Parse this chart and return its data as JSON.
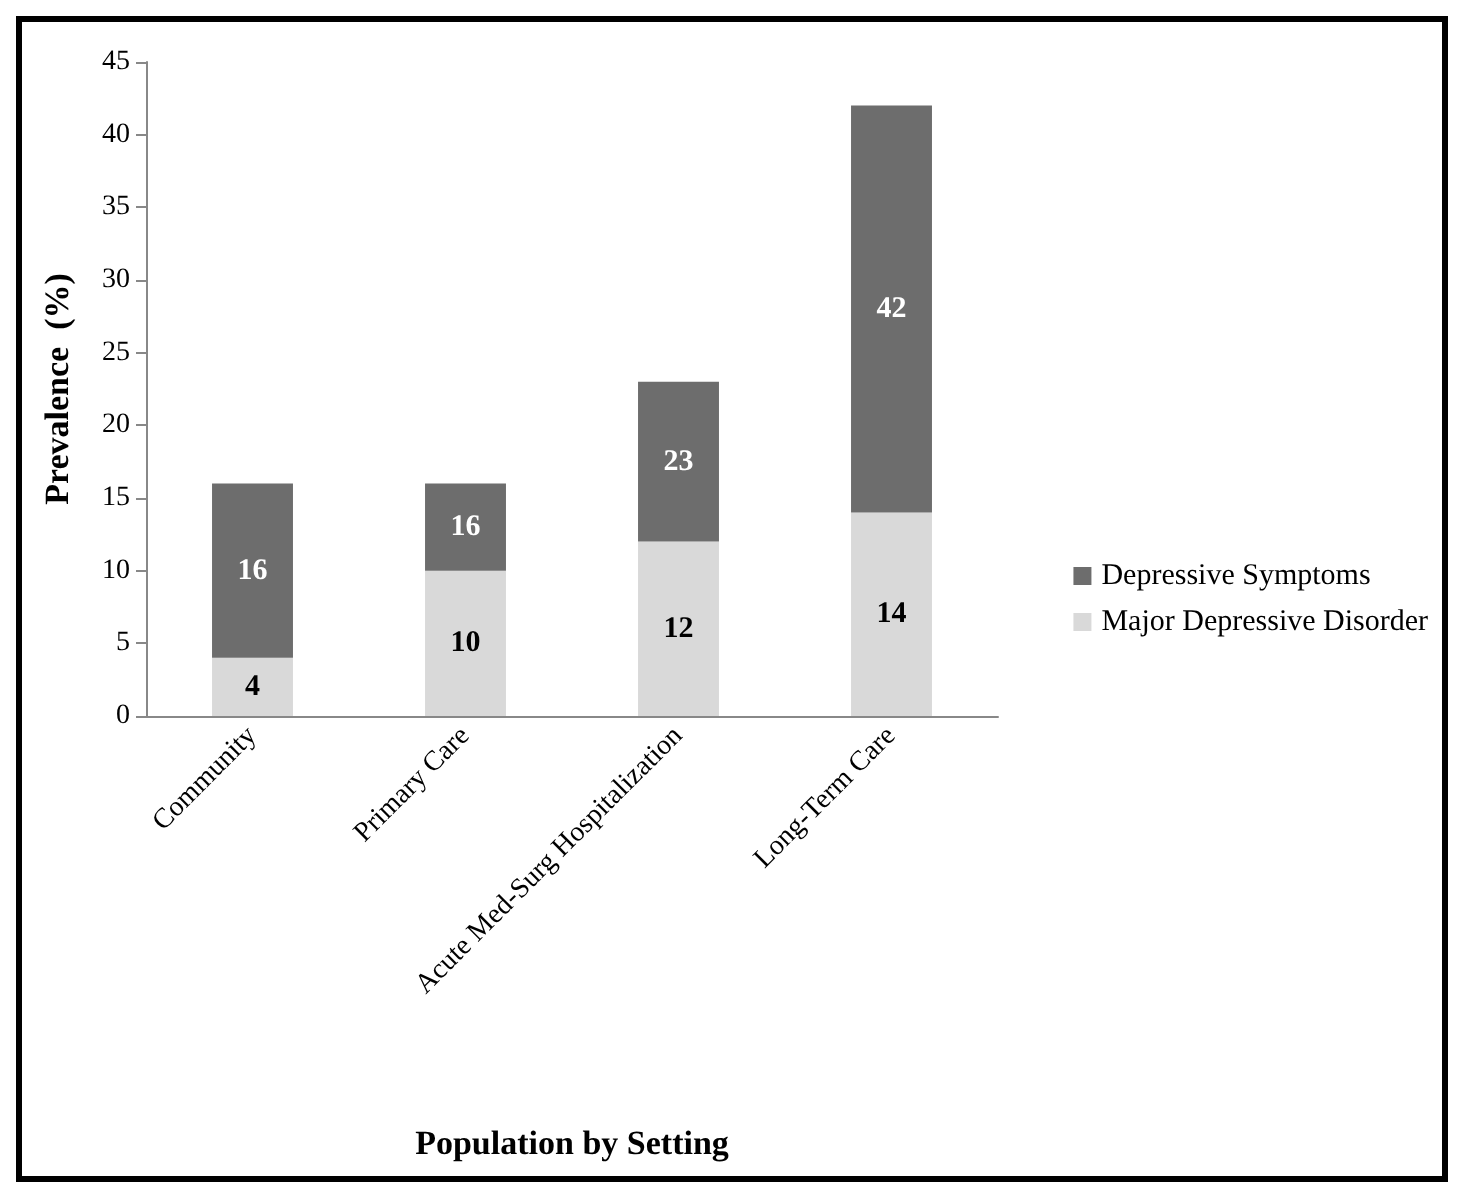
{
  "chart_data": {
    "type": "bar",
    "stacked": true,
    "xlabel": "Population by Setting",
    "ylabel": "Prevalence  (%)",
    "categories": [
      "Community",
      "Primary Care",
      "Acute Med-Surg Hospitalization",
      "Long-Term Care"
    ],
    "series": [
      {
        "name": "Major Depressive Disorder",
        "color": "#d9d9d9",
        "values": [
          4,
          10,
          12,
          14
        ],
        "value_labels": [
          "4",
          "10",
          "12",
          "14"
        ]
      },
      {
        "name": "Depressive Symptoms",
        "color": "#6d6d6d",
        "values": [
          12,
          6,
          11,
          28
        ]
      }
    ],
    "totals": [
      "16",
      "16",
      "23",
      "42"
    ],
    "ylim": [
      0,
      45
    ],
    "yticks": [
      0,
      5,
      10,
      15,
      20,
      25,
      30,
      35,
      40,
      45
    ],
    "grid": false,
    "legend": "right"
  }
}
